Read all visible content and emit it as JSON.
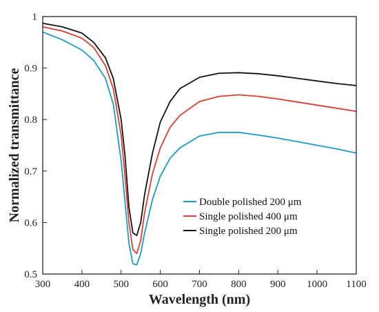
{
  "chart_data": {
    "type": "line",
    "title": "",
    "xlabel": "Wavelength (nm)",
    "ylabel": "Normalized transmittance",
    "xlim": [
      300,
      1100
    ],
    "ylim": [
      0.5,
      1.0
    ],
    "x_ticks": [
      300,
      400,
      500,
      600,
      700,
      800,
      900,
      1000,
      1100
    ],
    "y_ticks": [
      0.5,
      0.6,
      0.7,
      0.8,
      0.9,
      1.0
    ],
    "y_tick_labels": [
      "0.5",
      "0.6",
      "0.7",
      "0.8",
      "0.9",
      "1"
    ],
    "grid": false,
    "legend_position": "lower-right",
    "series": [
      {
        "name": "Double polished 200 μm",
        "color": "#1a9bc4",
        "x": [
          300,
          350,
          400,
          430,
          460,
          480,
          500,
          510,
          520,
          530,
          540,
          550,
          560,
          580,
          600,
          625,
          650,
          700,
          750,
          800,
          850,
          900,
          950,
          1000,
          1050,
          1100
        ],
        "y": [
          0.97,
          0.955,
          0.935,
          0.915,
          0.88,
          0.83,
          0.72,
          0.64,
          0.56,
          0.52,
          0.518,
          0.54,
          0.58,
          0.645,
          0.69,
          0.725,
          0.745,
          0.768,
          0.775,
          0.775,
          0.77,
          0.764,
          0.757,
          0.75,
          0.743,
          0.735
        ]
      },
      {
        "name": "Single polished 400 μm",
        "color": "#e33a30",
        "x": [
          300,
          350,
          400,
          430,
          460,
          480,
          500,
          510,
          520,
          530,
          540,
          550,
          560,
          580,
          600,
          625,
          650,
          700,
          750,
          800,
          850,
          900,
          950,
          1000,
          1050,
          1100
        ],
        "y": [
          0.98,
          0.972,
          0.958,
          0.94,
          0.905,
          0.86,
          0.77,
          0.69,
          0.6,
          0.548,
          0.54,
          0.565,
          0.62,
          0.695,
          0.745,
          0.785,
          0.808,
          0.835,
          0.845,
          0.848,
          0.845,
          0.84,
          0.834,
          0.828,
          0.822,
          0.816
        ]
      },
      {
        "name": "Single polished 200 μm",
        "color": "#111111",
        "x": [
          300,
          350,
          400,
          430,
          460,
          480,
          500,
          510,
          520,
          530,
          540,
          550,
          560,
          580,
          600,
          625,
          650,
          700,
          750,
          800,
          850,
          900,
          950,
          1000,
          1050,
          1100
        ],
        "y": [
          0.987,
          0.98,
          0.968,
          0.95,
          0.92,
          0.88,
          0.8,
          0.73,
          0.63,
          0.58,
          0.575,
          0.6,
          0.655,
          0.735,
          0.795,
          0.835,
          0.86,
          0.882,
          0.89,
          0.891,
          0.889,
          0.885,
          0.88,
          0.875,
          0.87,
          0.866
        ]
      }
    ]
  }
}
